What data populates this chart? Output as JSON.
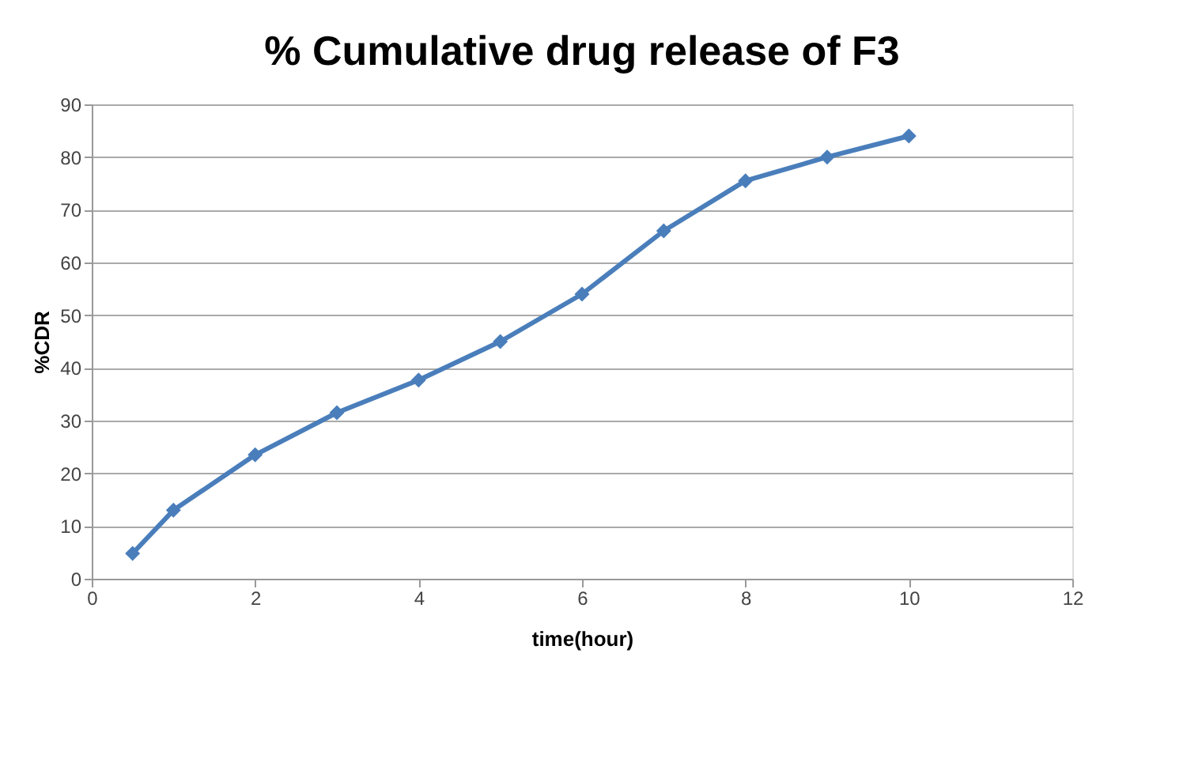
{
  "chart_data": {
    "type": "line",
    "title": "% Cumulative drug release of F3",
    "xlabel": "time(hour)",
    "ylabel": "%CDR",
    "x": [
      0.5,
      1,
      2,
      3,
      4,
      5,
      6,
      7,
      8,
      9,
      10
    ],
    "series": [
      {
        "color": "#4a7ebb",
        "values": [
          4.8,
          13,
          23.5,
          31.5,
          37.7,
          45,
          54,
          66,
          75.5,
          80,
          84
        ]
      }
    ],
    "xlim": [
      0,
      12
    ],
    "xticks": [
      0,
      2,
      4,
      6,
      8,
      10,
      12
    ],
    "ylim": [
      0,
      90
    ],
    "yticks": [
      0,
      10,
      20,
      30,
      40,
      50,
      60,
      70,
      80,
      90
    ],
    "grid": "y",
    "marker": "diamond",
    "line_style": "solid",
    "legend": false
  }
}
